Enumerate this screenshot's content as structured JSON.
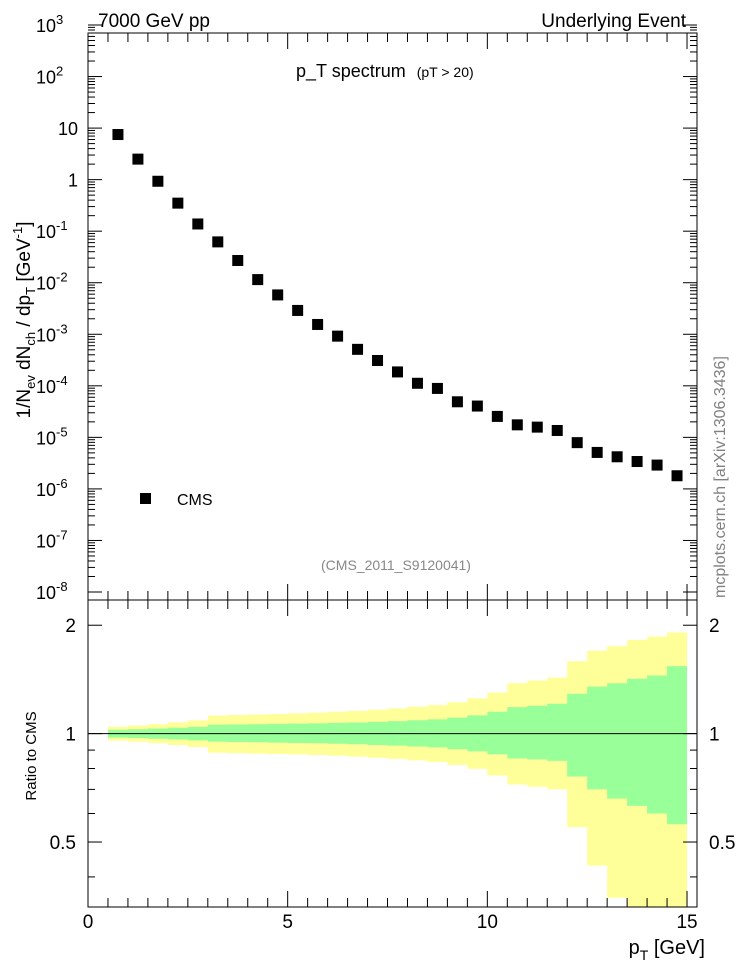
{
  "header": {
    "left": "7000 GeV pp",
    "right": "Underlying Event"
  },
  "side_label": "mcplots.cern.ch [arXiv:1306.3436]",
  "chart_data": [
    {
      "type": "scatter",
      "title": "p_T spectrum",
      "title_note": "(pT > 20)",
      "analysis": "(CMS_2011_S9120041)",
      "ylabel": "1/N_ev dN_ch / dp_T [GeV^-1]",
      "yscale": "log",
      "ylim": [
        1e-08,
        1000
      ],
      "xlim": [
        0,
        15.25
      ],
      "grid": false,
      "legend": {
        "position": "left",
        "entries": [
          "CMS"
        ]
      },
      "yticks": [
        {
          "v": 1e-08,
          "base": "10",
          "exp": "-8"
        },
        {
          "v": 1e-07,
          "base": "10",
          "exp": "-7"
        },
        {
          "v": 1e-06,
          "base": "10",
          "exp": "-6"
        },
        {
          "v": 1e-05,
          "base": "10",
          "exp": "-5"
        },
        {
          "v": 0.0001,
          "base": "10",
          "exp": "-4"
        },
        {
          "v": 0.001,
          "base": "10",
          "exp": "-3"
        },
        {
          "v": 0.01,
          "base": "10",
          "exp": "-2"
        },
        {
          "v": 0.1,
          "base": "10",
          "exp": "-1"
        },
        {
          "v": 1,
          "base": "1",
          "exp": ""
        },
        {
          "v": 10,
          "base": "10",
          "exp": ""
        },
        {
          "v": 100,
          "base": "10",
          "exp": "2"
        },
        {
          "v": 1000,
          "base": "10",
          "exp": "3"
        }
      ],
      "series": [
        {
          "name": "CMS",
          "x": [
            0.75,
            1.25,
            1.75,
            2.25,
            2.75,
            3.25,
            3.75,
            4.25,
            4.75,
            5.25,
            5.75,
            6.25,
            6.75,
            7.25,
            7.75,
            8.25,
            8.75,
            9.25,
            9.75,
            10.25,
            10.75,
            11.25,
            11.75,
            12.25,
            12.75,
            13.25,
            13.75,
            14.25,
            14.75
          ],
          "y": [
            7.5,
            2.5,
            0.93,
            0.35,
            0.138,
            0.062,
            0.027,
            0.0115,
            0.0058,
            0.0029,
            0.00155,
            0.00092,
            0.00051,
            0.00031,
            0.000186,
            0.000112,
            8.9e-05,
            4.9e-05,
            4.05e-05,
            2.55e-05,
            1.75e-05,
            1.58e-05,
            1.36e-05,
            7.9e-06,
            5.1e-06,
            4.2e-06,
            3.4e-06,
            2.9e-06,
            1.8e-06
          ]
        }
      ]
    },
    {
      "type": "area",
      "ylabel": "Ratio to CMS",
      "xlabel": "p_T [GeV]",
      "xlim": [
        0,
        15.25
      ],
      "ylim": [
        0.33,
        2.35
      ],
      "xticks": [
        0,
        5,
        10,
        15
      ],
      "yticks": [
        0.5,
        1,
        2
      ],
      "reference": 1,
      "bins": [
        0.5,
        1.0,
        1.5,
        2.0,
        2.5,
        3.0,
        3.5,
        4.0,
        4.5,
        5.0,
        5.5,
        6.0,
        6.5,
        7.0,
        7.5,
        8.0,
        8.5,
        9.0,
        9.5,
        10.0,
        10.5,
        11.0,
        11.5,
        12.0,
        12.5,
        13.0,
        13.5,
        14.0,
        14.5,
        15.0
      ],
      "series": [
        {
          "band": "outer",
          "color": "#ffff99",
          "low": [
            0.956,
            0.95,
            0.94,
            0.93,
            0.918,
            0.885,
            0.883,
            0.88,
            0.878,
            0.876,
            0.872,
            0.868,
            0.863,
            0.857,
            0.851,
            0.843,
            0.835,
            0.818,
            0.798,
            0.765,
            0.722,
            0.712,
            0.7,
            0.55,
            0.43,
            0.35,
            0.33,
            0.33,
            0.33
          ],
          "high": [
            1.045,
            1.053,
            1.063,
            1.075,
            1.088,
            1.123,
            1.126,
            1.13,
            1.134,
            1.138,
            1.144,
            1.15,
            1.157,
            1.165,
            1.175,
            1.187,
            1.2,
            1.222,
            1.253,
            1.3,
            1.38,
            1.405,
            1.43,
            1.59,
            1.7,
            1.75,
            1.82,
            1.86,
            1.91
          ]
        },
        {
          "band": "inner",
          "color": "#99ff99",
          "low": [
            0.975,
            0.972,
            0.968,
            0.963,
            0.958,
            0.95,
            0.948,
            0.946,
            0.944,
            0.942,
            0.94,
            0.937,
            0.934,
            0.93,
            0.926,
            0.921,
            0.916,
            0.905,
            0.893,
            0.876,
            0.853,
            0.848,
            0.84,
            0.76,
            0.7,
            0.66,
            0.63,
            0.6,
            0.56
          ],
          "high": [
            1.025,
            1.028,
            1.033,
            1.038,
            1.044,
            1.058,
            1.06,
            1.062,
            1.064,
            1.066,
            1.068,
            1.071,
            1.074,
            1.078,
            1.083,
            1.089,
            1.095,
            1.108,
            1.124,
            1.15,
            1.185,
            1.195,
            1.21,
            1.29,
            1.35,
            1.38,
            1.42,
            1.45,
            1.54
          ]
        }
      ]
    }
  ],
  "colors": {
    "marker": "#000000",
    "outer_band": "#ffff99",
    "inner_band": "#99ff99",
    "axis": "#000000",
    "analysis_label": "#888888",
    "side_label": "#808080"
  }
}
